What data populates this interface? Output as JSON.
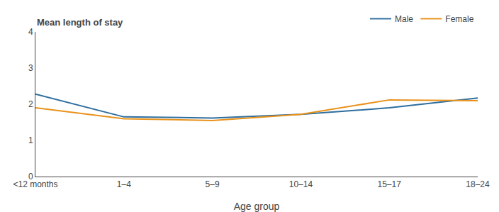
{
  "chart_data": {
    "type": "line",
    "categories": [
      "<12 months",
      "1–4",
      "5–9",
      "10–14",
      "15–17",
      "18–24"
    ],
    "series": [
      {
        "name": "Male",
        "color": "#2E6E9E",
        "values": [
          2.28,
          1.65,
          1.62,
          1.72,
          1.9,
          2.17
        ]
      },
      {
        "name": "Female",
        "color": "#E8921A",
        "values": [
          1.9,
          1.6,
          1.55,
          1.72,
          2.12,
          2.1
        ]
      }
    ],
    "xlabel": "Age group",
    "ylabel": "Mean length of stay",
    "ylim": [
      0,
      4
    ],
    "yticks": [
      0,
      1,
      2,
      3,
      4
    ],
    "grid": false,
    "legend": "upper right"
  }
}
